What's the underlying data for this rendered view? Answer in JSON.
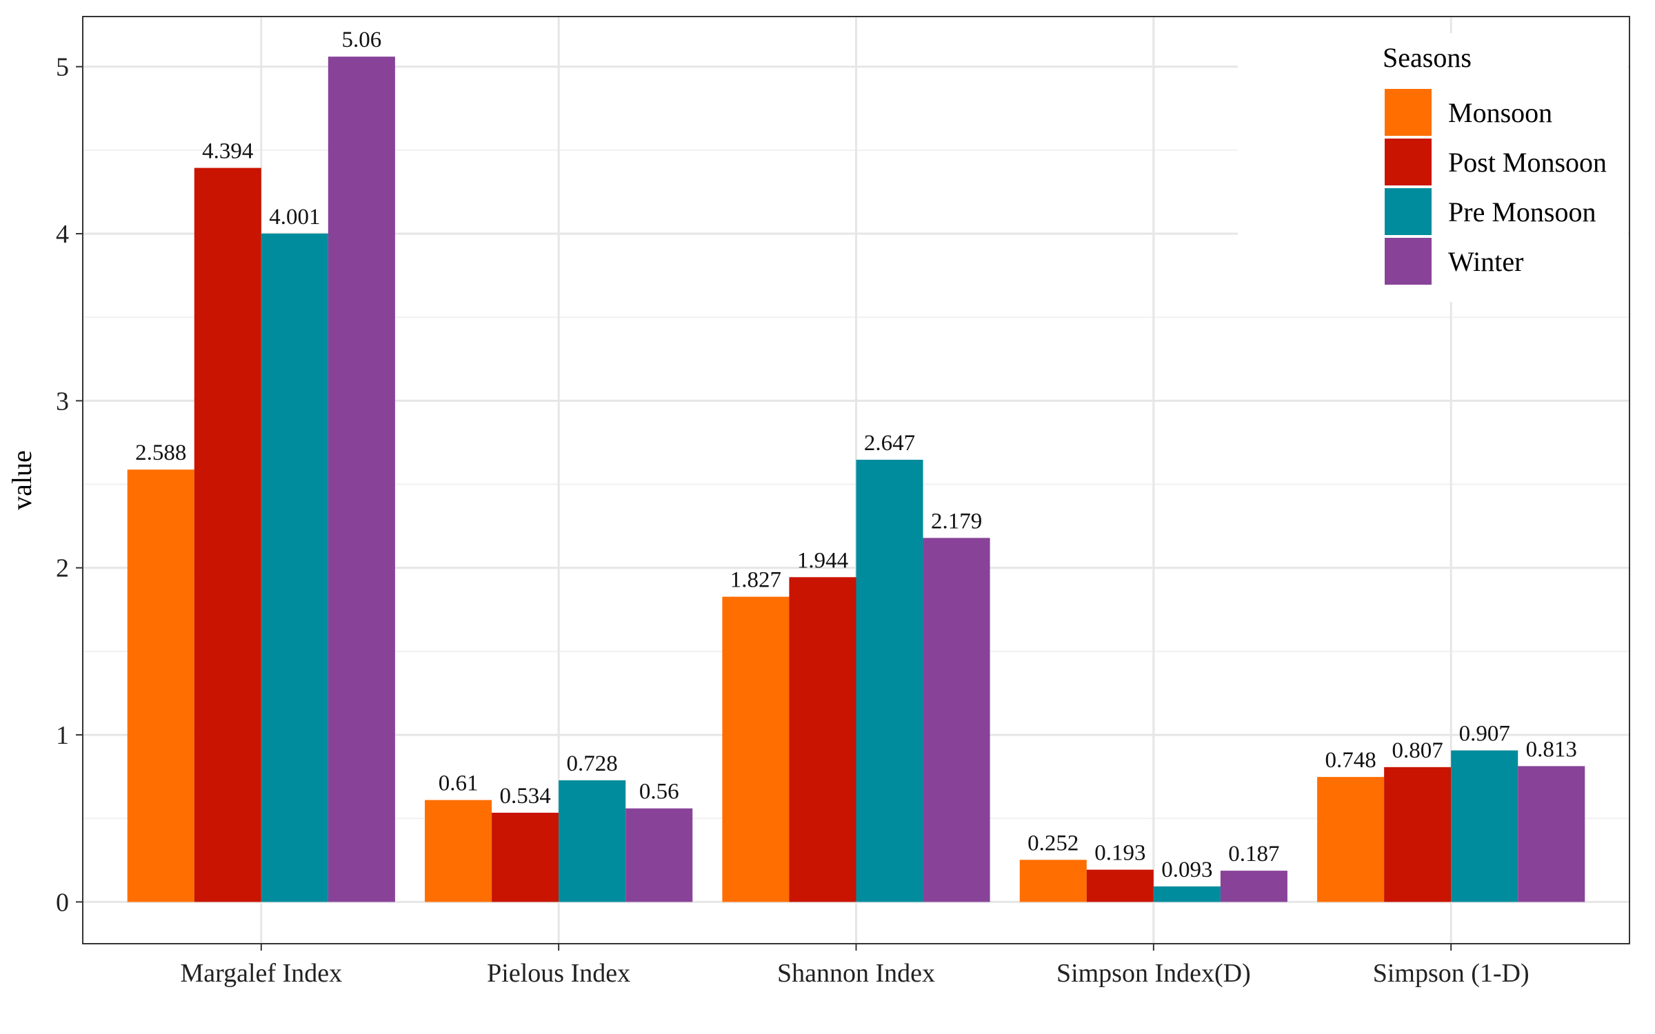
{
  "chart_data": {
    "type": "bar",
    "categories": [
      "Margalef Index",
      "Pielous Index",
      "Shannon Index",
      "Simpson Index(D)",
      "Simpson (1-D)"
    ],
    "series": [
      {
        "name": "Monsoon",
        "color": "#FF6E00",
        "values": [
          2.588,
          0.61,
          1.827,
          0.252,
          0.748
        ]
      },
      {
        "name": "Post Monsoon",
        "color": "#C81400",
        "values": [
          4.394,
          0.534,
          1.944,
          0.193,
          0.807
        ]
      },
      {
        "name": "Pre Monsoon",
        "color": "#008C9C",
        "values": [
          4.001,
          0.728,
          2.647,
          0.093,
          0.907
        ]
      },
      {
        "name": "Winter",
        "color": "#884399",
        "values": [
          5.06,
          0.56,
          2.179,
          0.187,
          0.813
        ]
      }
    ],
    "data_labels": [
      [
        "2.588",
        "0.61",
        "1.827",
        "0.252",
        "0.748"
      ],
      [
        "4.394",
        "0.534",
        "1.944",
        "0.193",
        "0.807"
      ],
      [
        "4.001",
        "0.728",
        "2.647",
        "0.093",
        "0.907"
      ],
      [
        "5.06",
        "0.56",
        "2.179",
        "0.187",
        "0.813"
      ]
    ],
    "title": "",
    "xlabel": "",
    "ylabel": "value",
    "ylim": [
      -0.25,
      5.3
    ],
    "yticks": [
      0,
      1,
      2,
      3,
      4,
      5
    ],
    "grid": true,
    "legend": {
      "title": "Seasons",
      "position": "top-right"
    }
  }
}
